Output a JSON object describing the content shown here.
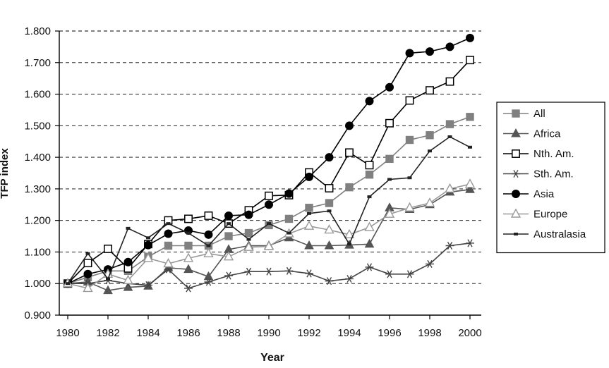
{
  "chart_data": {
    "type": "line",
    "xlabel": "Year",
    "ylabel": "TFP index",
    "ylim": [
      0.9,
      1.8
    ],
    "xlim": [
      1980,
      2000
    ],
    "yticks": [
      "0.900",
      "1.000",
      "1.100",
      "1.200",
      "1.300",
      "1.400",
      "1.500",
      "1.600",
      "1.700",
      "1.800"
    ],
    "xticks": [
      "1980",
      "1982",
      "1984",
      "1986",
      "1988",
      "1990",
      "1992",
      "1994",
      "1996",
      "1998",
      "2000"
    ],
    "grid": "horizontal dashed",
    "legend_position": "right",
    "x": [
      1980,
      1981,
      1982,
      1983,
      1984,
      1985,
      1986,
      1987,
      1988,
      1989,
      1990,
      1991,
      1992,
      1993,
      1994,
      1995,
      1996,
      1997,
      1998,
      1999,
      2000
    ],
    "series": [
      {
        "name": "All",
        "marker": "square-filled",
        "color": "#808080",
        "values": [
          1.0,
          1.02,
          1.04,
          1.04,
          1.085,
          1.12,
          1.12,
          1.12,
          1.15,
          1.16,
          1.185,
          1.205,
          1.24,
          1.255,
          1.305,
          1.345,
          1.395,
          1.455,
          1.47,
          1.505,
          1.528
        ]
      },
      {
        "name": "Africa",
        "marker": "triangle-filled",
        "color": "#555555",
        "values": [
          1.0,
          1.005,
          0.978,
          0.988,
          0.992,
          1.05,
          1.045,
          1.022,
          1.108,
          1.12,
          1.12,
          1.145,
          1.12,
          1.12,
          1.122,
          1.125,
          1.24,
          1.235,
          1.25,
          1.29,
          1.298
        ]
      },
      {
        "name": "Nth. Am.",
        "marker": "square-open",
        "color": "#000000",
        "values": [
          1.0,
          1.065,
          1.11,
          1.048,
          1.125,
          1.2,
          1.205,
          1.215,
          1.19,
          1.232,
          1.278,
          1.28,
          1.352,
          1.302,
          1.415,
          1.375,
          1.508,
          1.58,
          1.612,
          1.64,
          1.708
        ]
      },
      {
        "name": "Sth. Am.",
        "marker": "star",
        "color": "#444444",
        "values": [
          1.0,
          1.0,
          1.01,
          1.0,
          0.995,
          1.045,
          0.985,
          1.005,
          1.025,
          1.038,
          1.038,
          1.04,
          1.032,
          1.008,
          1.015,
          1.052,
          1.03,
          1.03,
          1.062,
          1.12,
          1.128
        ]
      },
      {
        "name": "Asia",
        "marker": "circle-filled",
        "color": "#000000",
        "values": [
          1.0,
          1.03,
          1.045,
          1.068,
          1.122,
          1.158,
          1.168,
          1.155,
          1.215,
          1.218,
          1.25,
          1.285,
          1.338,
          1.4,
          1.5,
          1.578,
          1.622,
          1.73,
          1.735,
          1.75,
          1.778
        ]
      },
      {
        "name": "Europe",
        "marker": "triangle-open",
        "color": "#999999",
        "values": [
          1.0,
          0.985,
          1.03,
          1.01,
          1.08,
          1.063,
          1.08,
          1.095,
          1.085,
          1.115,
          1.118,
          1.158,
          1.182,
          1.17,
          1.155,
          1.178,
          1.22,
          1.24,
          1.255,
          1.3,
          1.315
        ]
      },
      {
        "name": "Australasia",
        "marker": "dash",
        "color": "#222222",
        "values": [
          1.0,
          1.095,
          1.015,
          1.175,
          1.145,
          1.19,
          1.16,
          1.12,
          1.19,
          1.14,
          1.19,
          1.16,
          1.222,
          1.23,
          1.125,
          1.275,
          1.33,
          1.335,
          1.42,
          1.465,
          1.432
        ]
      }
    ]
  }
}
